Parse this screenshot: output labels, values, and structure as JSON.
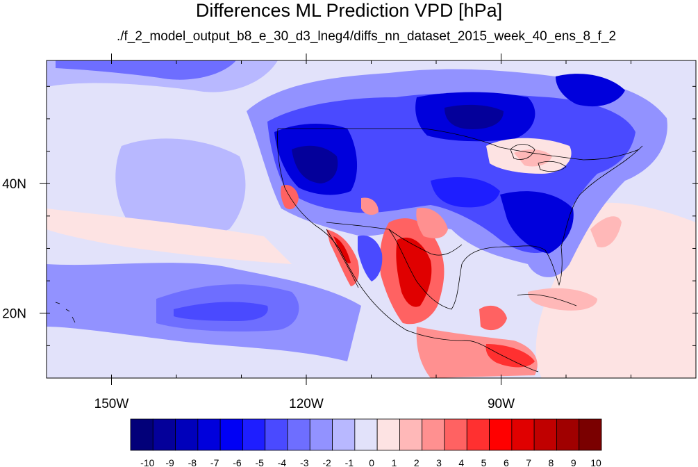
{
  "title": "Differences ML Prediction VPD [hPa]",
  "subtitle": "./f_2_model_output_b8_e_30_d3_lneg4/diffs_nn_dataset_2015_week_40_ens_8_f_2",
  "map": {
    "lon_range": [
      -160,
      -60
    ],
    "lat_range": [
      10,
      59
    ],
    "lon_ticks": [
      {
        "value": -150,
        "label": "150W"
      },
      {
        "value": -120,
        "label": "120W"
      },
      {
        "value": -90,
        "label": "90W"
      }
    ],
    "lat_ticks": [
      {
        "value": 40,
        "label": "40N"
      },
      {
        "value": 20,
        "label": "20N"
      }
    ]
  },
  "colorbar": {
    "labels": [
      "-10",
      "-9",
      "-8",
      "-7",
      "-6",
      "-5",
      "-4",
      "-3",
      "-2",
      "-1",
      "0",
      "1",
      "2",
      "3",
      "4",
      "5",
      "6",
      "7",
      "8",
      "9",
      "10"
    ],
    "colors": [
      "#020079",
      "#04009a",
      "#0000bb",
      "#0000dc",
      "#0000f5",
      "#1e1eff",
      "#4a4aff",
      "#6e6eff",
      "#9292ff",
      "#b8b8ff",
      "#e2e2fa",
      "#fde3e3",
      "#ffb8b8",
      "#ff9090",
      "#ff6262",
      "#ff3030",
      "#ff0000",
      "#e00000",
      "#c00000",
      "#a00000",
      "#7a0000"
    ]
  }
}
